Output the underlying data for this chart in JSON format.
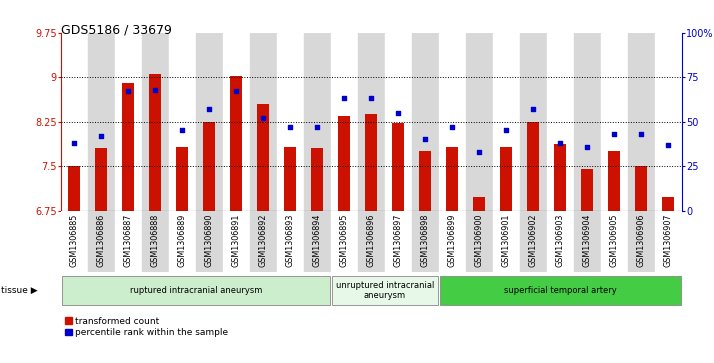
{
  "title": "GDS5186 / 33679",
  "samples": [
    "GSM1306885",
    "GSM1306886",
    "GSM1306887",
    "GSM1306888",
    "GSM1306889",
    "GSM1306890",
    "GSM1306891",
    "GSM1306892",
    "GSM1306893",
    "GSM1306894",
    "GSM1306895",
    "GSM1306896",
    "GSM1306897",
    "GSM1306898",
    "GSM1306899",
    "GSM1306900",
    "GSM1306901",
    "GSM1306902",
    "GSM1306903",
    "GSM1306904",
    "GSM1306905",
    "GSM1306906",
    "GSM1306907"
  ],
  "bar_values": [
    7.5,
    7.8,
    8.9,
    9.05,
    7.82,
    8.25,
    9.02,
    8.55,
    7.82,
    7.8,
    8.35,
    8.37,
    8.22,
    7.75,
    7.82,
    6.98,
    7.82,
    8.25,
    7.88,
    7.45,
    7.75,
    7.5,
    6.98
  ],
  "percentile_values": [
    38,
    42,
    67,
    68,
    45,
    57,
    67,
    52,
    47,
    47,
    63,
    63,
    55,
    40,
    47,
    33,
    45,
    57,
    38,
    36,
    43,
    43,
    37
  ],
  "ylim_left": [
    6.75,
    9.75
  ],
  "ylim_right": [
    0,
    100
  ],
  "yticks_left": [
    6.75,
    7.5,
    8.25,
    9.0,
    9.75
  ],
  "ytick_labels_left": [
    "6.75",
    "7.5",
    "8.25",
    "9",
    "9.75"
  ],
  "yticks_right": [
    0,
    25,
    50,
    75,
    100
  ],
  "ytick_labels_right": [
    "0",
    "25",
    "50",
    "75",
    "100%"
  ],
  "bar_color": "#cc1100",
  "dot_color": "#0000cc",
  "grid_yticks": [
    7.5,
    8.25,
    9.0
  ],
  "col_colors": [
    "#ffffff",
    "#d8d8d8"
  ],
  "groups": [
    {
      "label": "ruptured intracranial aneurysm",
      "start": 0,
      "end": 10,
      "color": "#cceecc"
    },
    {
      "label": "unruptured intracranial\naneurysm",
      "start": 10,
      "end": 14,
      "color": "#e8f8e8"
    },
    {
      "label": "superficial temporal artery",
      "start": 14,
      "end": 23,
      "color": "#44cc44"
    }
  ],
  "legend_items": [
    {
      "label": "transformed count",
      "color": "#cc1100"
    },
    {
      "label": "percentile rank within the sample",
      "color": "#0000cc"
    }
  ]
}
